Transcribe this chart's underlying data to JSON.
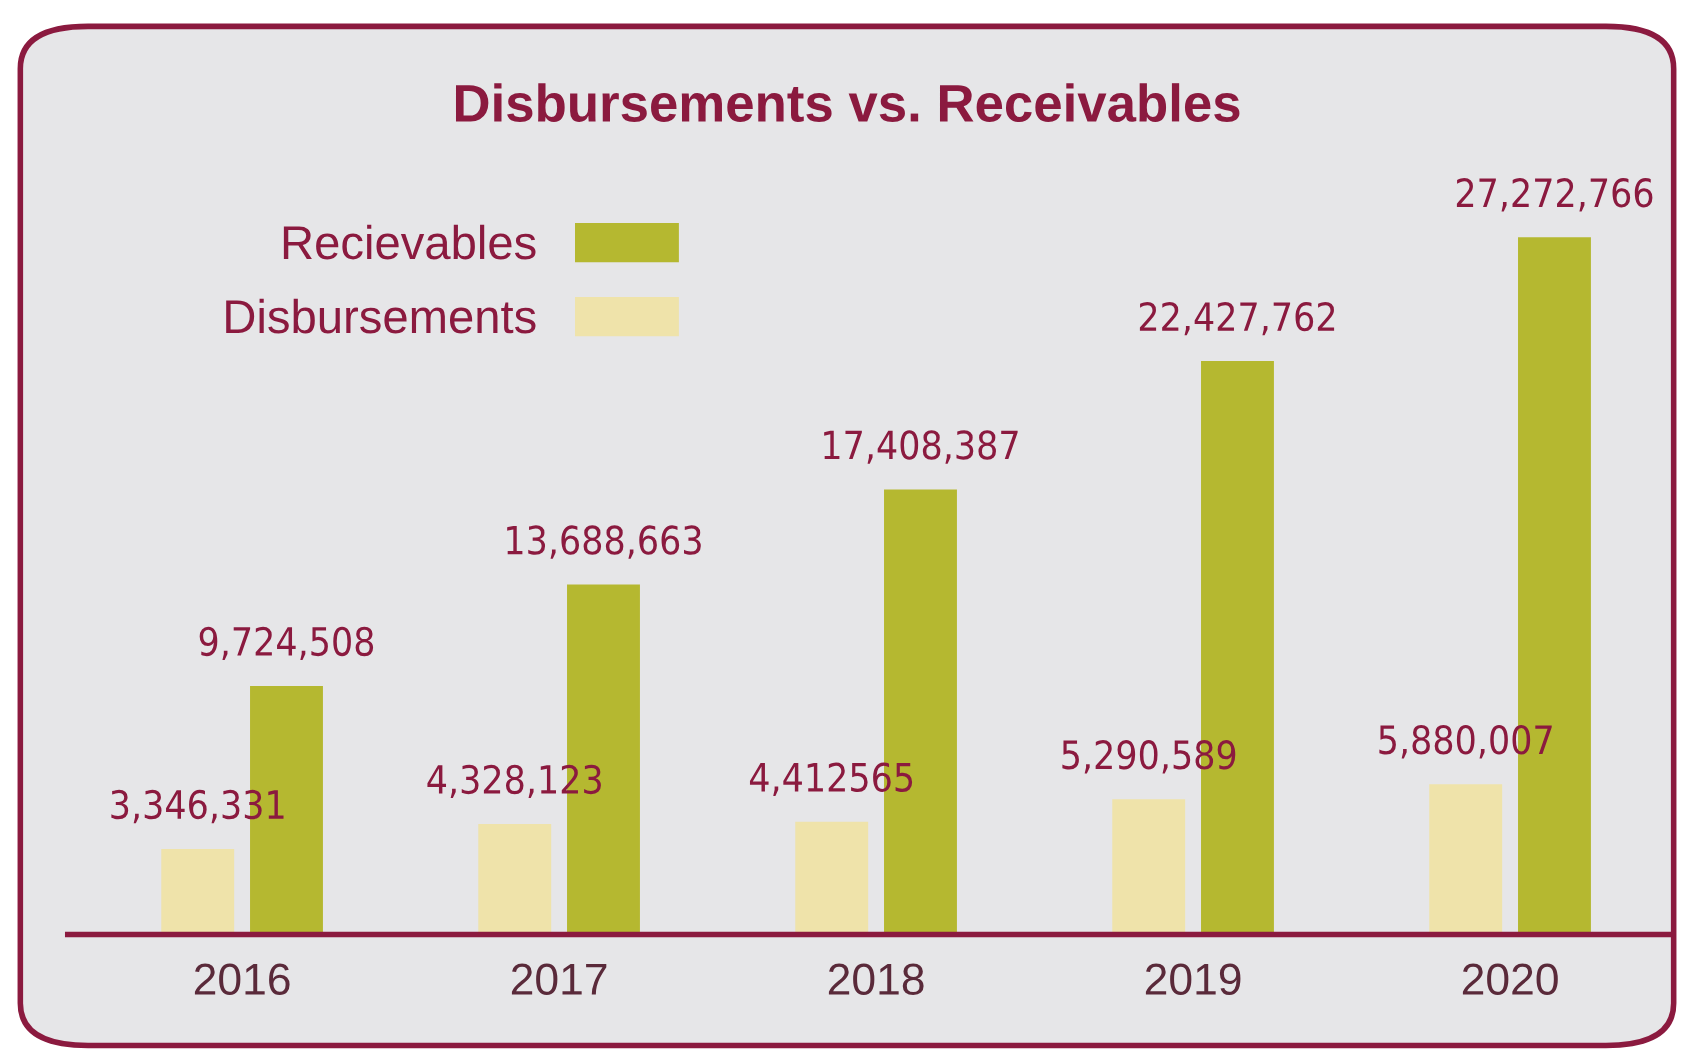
{
  "chart_data": {
    "type": "bar",
    "title": "Disbursements vs. Receivables",
    "categories": [
      "2016",
      "2017",
      "2018",
      "2019",
      "2020"
    ],
    "series": [
      {
        "name": "Disbursements",
        "color": "#efe3aa",
        "values": [
          3346331,
          4328123,
          4412565,
          5290589,
          5880007
        ],
        "value_labels": [
          "3,346,331",
          "4,328,123",
          "4,412565",
          "5,290,589",
          "5,880,007"
        ]
      },
      {
        "name": "Recievables",
        "color": "#b5b830",
        "values": [
          9724508,
          13688663,
          17408387,
          22427762,
          27272766
        ],
        "value_labels": [
          "9,724,508",
          "13,688,663",
          "17,408,387",
          "22,427,762",
          "27,272,766"
        ]
      }
    ],
    "legend": "top left",
    "grid": false
  }
}
